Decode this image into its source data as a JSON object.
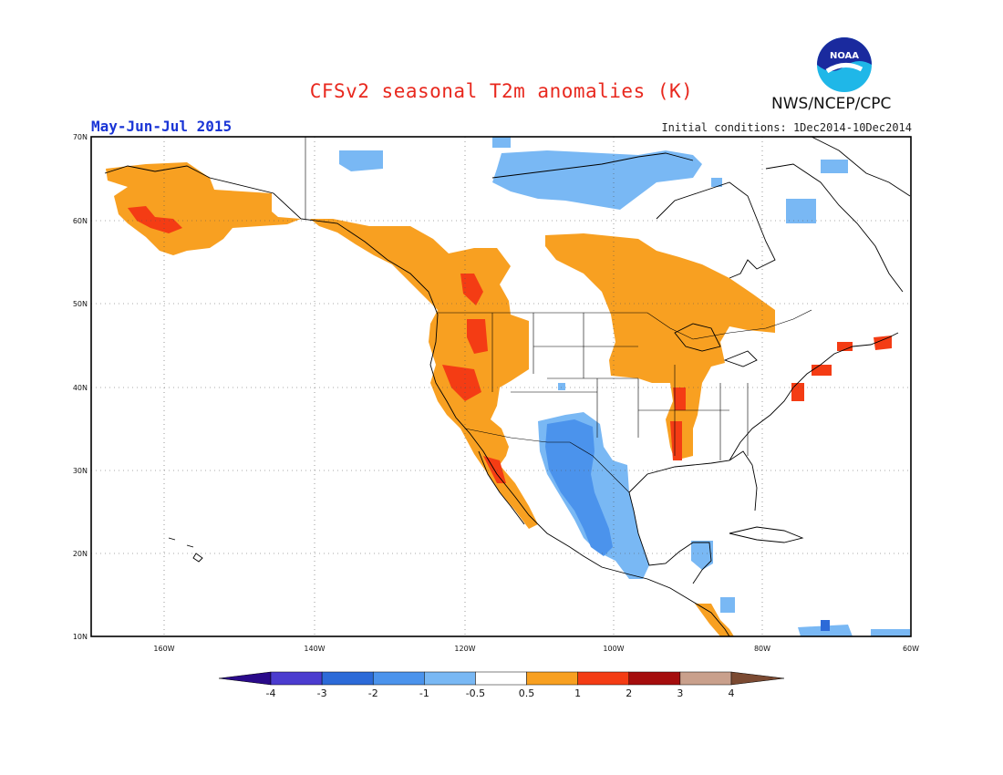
{
  "title": "CFSv2 seasonal T2m anomalies (K)",
  "period": "May-Jun-Jul 2015",
  "initial_conditions": "Initial conditions: 1Dec2014-10Dec2014",
  "agency": "NWS/NCEP/CPC",
  "logo_text": "NOAA",
  "lon_labels": [
    "160W",
    "140W",
    "120W",
    "100W",
    "80W",
    "60W"
  ],
  "lat_labels": [
    "70N",
    "60N",
    "50N",
    "40N",
    "30N",
    "20N",
    "10N"
  ],
  "colorbar": {
    "labels": [
      "-4",
      "-3",
      "-2",
      "-1",
      "-0.5",
      "0.5",
      "1",
      "2",
      "3",
      "4"
    ],
    "colors": [
      "#2a0a8a",
      "#4b3ccf",
      "#2c6ad8",
      "#4b93ec",
      "#79b8f4",
      "#ffffff",
      "#f8a021",
      "#f43c14",
      "#a50d0d",
      "#c9a08c",
      "#7b4a32"
    ]
  },
  "anomaly_regions": [
    {
      "name": "Alaska",
      "level": "warm"
    },
    {
      "name": "Western Canada",
      "level": "warm"
    },
    {
      "name": "US West Coast",
      "level": "warm"
    },
    {
      "name": "Baja California",
      "level": "warm"
    },
    {
      "name": "Central Canada / Upper Midwest",
      "level": "warm"
    },
    {
      "name": "Mississippi Valley",
      "level": "warm"
    },
    {
      "name": "Southwest US / Mexico",
      "level": "cool"
    },
    {
      "name": "Northern Canada",
      "level": "cool"
    },
    {
      "name": "Yucatan",
      "level": "cool"
    }
  ]
}
